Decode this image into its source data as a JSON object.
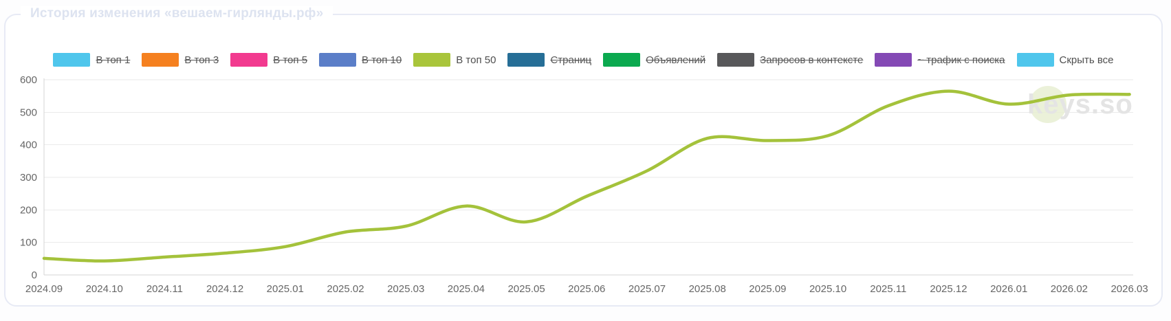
{
  "panel": {
    "title": "История изменения «вешаем-гирлянды.рф»"
  },
  "legend": {
    "items": [
      {
        "label": "В топ 1",
        "color": "#4FC6EC",
        "disabled": true
      },
      {
        "label": "В топ 3",
        "color": "#F5801F",
        "disabled": true
      },
      {
        "label": "В топ 5",
        "color": "#F23A8F",
        "disabled": true
      },
      {
        "label": "В топ 10",
        "color": "#5B7EC8",
        "disabled": true
      },
      {
        "label": "В топ 50",
        "color": "#A9C53B",
        "disabled": false
      },
      {
        "label": "Страниц",
        "color": "#266E96",
        "disabled": true
      },
      {
        "label": "Объявлений",
        "color": "#0BA94F",
        "disabled": true
      },
      {
        "label": "Запросов в контексте",
        "color": "#58585A",
        "disabled": true
      },
      {
        "label": "~ трафик с поиска",
        "color": "#8449B5",
        "disabled": true
      },
      {
        "label": "Скрыть все",
        "color": "#4FC6EC",
        "disabled": false
      }
    ]
  },
  "watermark": {
    "text": "keys.so"
  },
  "chart_data": {
    "type": "line",
    "title": "История изменения «вешаем-гирлянды.рф»",
    "categories": [
      "2024.09",
      "2024.10",
      "2024.11",
      "2024.12",
      "2025.01",
      "2025.02",
      "2025.03",
      "2025.04",
      "2025.05",
      "2025.06",
      "2025.07",
      "2025.08",
      "2025.09",
      "2025.10",
      "2025.11",
      "2025.12",
      "2026.01",
      "2026.02",
      "2026.03"
    ],
    "series": [
      {
        "name": "В топ 50",
        "color": "#A4C23B",
        "values": [
          51,
          43,
          55,
          67,
          87,
          132,
          150,
          212,
          163,
          242,
          320,
          420,
          413,
          428,
          520,
          565,
          525,
          553,
          555
        ]
      }
    ],
    "xlabel": "",
    "ylabel": "",
    "ylim": [
      0,
      600
    ],
    "yticks": [
      0,
      100,
      200,
      300,
      400,
      500,
      600
    ],
    "grid": true,
    "legend_position": "top",
    "colors": {
      "grid_line": "#EAEAEA",
      "axis_line": "#D4D4D4",
      "tick_label": "#666666",
      "panel_border": "#E7EAF5",
      "title_faded": "#DDE3F0",
      "watermark_text": "#E4E4E4",
      "watermark_blob": "#E7EFD2"
    }
  }
}
